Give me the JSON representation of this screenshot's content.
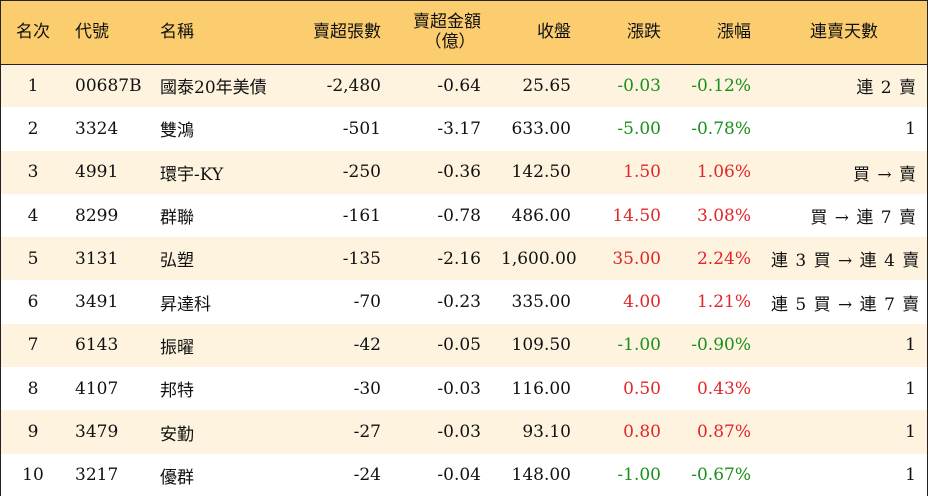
{
  "headers": {
    "rank": "名次",
    "code": "代號",
    "name": "名稱",
    "net_sell_lots": "賣超張數",
    "net_sell_amount_line1": "賣超金額",
    "net_sell_amount_line2": "（億）",
    "close": "收盤",
    "change": "漲跌",
    "change_pct": "漲幅",
    "streak": "連賣天數"
  },
  "colors": {
    "header_bg": "#fbcd6e",
    "row_alt_bg": "#fdf3df",
    "up": "#e0262a",
    "down": "#1a8f1a"
  },
  "rows": [
    {
      "rank": "1",
      "code": "00687B",
      "name": "國泰20年美債",
      "lots": "-2,480",
      "amount": "-0.64",
      "close": "25.65",
      "change": "-0.03",
      "pct": "-0.12%",
      "dir": "down",
      "streak": "連 2 賣"
    },
    {
      "rank": "2",
      "code": "3324",
      "name": "雙鴻",
      "lots": "-501",
      "amount": "-3.17",
      "close": "633.00",
      "change": "-5.00",
      "pct": "-0.78%",
      "dir": "down",
      "streak": "1"
    },
    {
      "rank": "3",
      "code": "4991",
      "name": "環宇-KY",
      "lots": "-250",
      "amount": "-0.36",
      "close": "142.50",
      "change": "1.50",
      "pct": "1.06%",
      "dir": "up",
      "streak": "買 → 賣"
    },
    {
      "rank": "4",
      "code": "8299",
      "name": "群聯",
      "lots": "-161",
      "amount": "-0.78",
      "close": "486.00",
      "change": "14.50",
      "pct": "3.08%",
      "dir": "up",
      "streak": "買 → 連 7 賣"
    },
    {
      "rank": "5",
      "code": "3131",
      "name": "弘塑",
      "lots": "-135",
      "amount": "-2.16",
      "close": "1,600.00",
      "change": "35.00",
      "pct": "2.24%",
      "dir": "up",
      "streak": "連 3 買 → 連 4 賣"
    },
    {
      "rank": "6",
      "code": "3491",
      "name": "昇達科",
      "lots": "-70",
      "amount": "-0.23",
      "close": "335.00",
      "change": "4.00",
      "pct": "1.21%",
      "dir": "up",
      "streak": "連 5 買 → 連 7 賣"
    },
    {
      "rank": "7",
      "code": "6143",
      "name": "振曜",
      "lots": "-42",
      "amount": "-0.05",
      "close": "109.50",
      "change": "-1.00",
      "pct": "-0.90%",
      "dir": "down",
      "streak": "1"
    },
    {
      "rank": "8",
      "code": "4107",
      "name": "邦特",
      "lots": "-30",
      "amount": "-0.03",
      "close": "116.00",
      "change": "0.50",
      "pct": "0.43%",
      "dir": "up",
      "streak": "1"
    },
    {
      "rank": "9",
      "code": "3479",
      "name": "安勤",
      "lots": "-27",
      "amount": "-0.03",
      "close": "93.10",
      "change": "0.80",
      "pct": "0.87%",
      "dir": "up",
      "streak": "1"
    },
    {
      "rank": "10",
      "code": "3217",
      "name": "優群",
      "lots": "-24",
      "amount": "-0.04",
      "close": "148.00",
      "change": "-1.00",
      "pct": "-0.67%",
      "dir": "down",
      "streak": "1"
    }
  ]
}
